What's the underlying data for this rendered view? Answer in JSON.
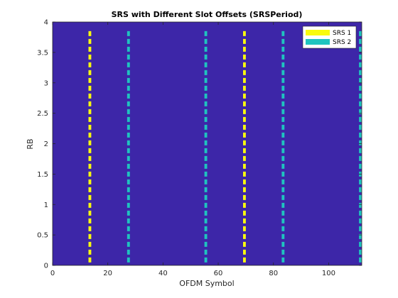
{
  "chart_data": {
    "type": "heatmap",
    "title": "SRS with Different Slot Offsets (SRSPeriod)",
    "xlabel": "OFDM Symbol",
    "ylabel": "RB",
    "xlim": [
      0,
      112
    ],
    "ylim": [
      0,
      4
    ],
    "xticks": [
      0,
      20,
      40,
      60,
      80,
      100
    ],
    "yticks": [
      0,
      0.5,
      1,
      1.5,
      2,
      2.5,
      3,
      3.5,
      4
    ],
    "ytick_labels": [
      "0",
      "0.5",
      "1",
      "1.5",
      "2",
      "2.5",
      "3",
      "3.5",
      "4"
    ],
    "grid": false,
    "background_color": "#3d26a8",
    "legend_placement": "top-right",
    "series": [
      {
        "name": "SRS 1",
        "color": "#f9fb0e",
        "symbols": [
          13,
          69
        ]
      },
      {
        "name": "SRS 2",
        "color": "#1fc4bf",
        "symbols": [
          27,
          55,
          83,
          111
        ]
      }
    ],
    "rb_extent": [
      0,
      3.85
    ]
  }
}
